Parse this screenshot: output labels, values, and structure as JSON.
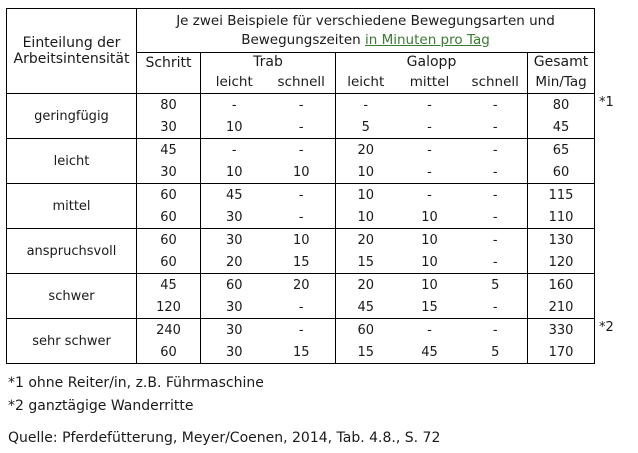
{
  "table": {
    "row_header_label_line1": "Einteilung der",
    "row_header_label_line2": "Arbeitsintensität",
    "title_line1": "Je zwei Beispiele für verschiedene Bewegungsarten und",
    "title_line2_prefix": "Bewegungszeiten ",
    "title_line2_highlight": "in Minuten pro Tag",
    "highlight_color": "#3a7a32",
    "group_headers": {
      "schritt": "Schritt",
      "trab": "Trab",
      "galopp": "Galopp",
      "gesamt": "Gesamt"
    },
    "sub_headers": {
      "trab_leicht": "leicht",
      "trab_schnell": "schnell",
      "galopp_leicht": "leicht",
      "galopp_mittel": "mittel",
      "galopp_schnell": "schnell",
      "gesamt_unit": "Min/Tag"
    },
    "groups": [
      {
        "label": "geringfügig",
        "note": "*1",
        "rows": [
          [
            "80",
            "-",
            "-",
            "-",
            "-",
            "-",
            "80"
          ],
          [
            "30",
            "10",
            "-",
            "5",
            "-",
            "-",
            "45"
          ]
        ]
      },
      {
        "label": "leicht",
        "note": "",
        "rows": [
          [
            "45",
            "-",
            "-",
            "20",
            "-",
            "-",
            "65"
          ],
          [
            "30",
            "10",
            "10",
            "10",
            "-",
            "-",
            "60"
          ]
        ]
      },
      {
        "label": "mittel",
        "note": "",
        "rows": [
          [
            "60",
            "45",
            "-",
            "10",
            "-",
            "-",
            "115"
          ],
          [
            "60",
            "30",
            "-",
            "10",
            "10",
            "-",
            "110"
          ]
        ]
      },
      {
        "label": "anspruchsvoll",
        "note": "",
        "rows": [
          [
            "60",
            "30",
            "10",
            "20",
            "10",
            "-",
            "130"
          ],
          [
            "60",
            "20",
            "15",
            "15",
            "10",
            "-",
            "120"
          ]
        ]
      },
      {
        "label": "schwer",
        "note": "",
        "rows": [
          [
            "45",
            "60",
            "20",
            "20",
            "10",
            "5",
            "160"
          ],
          [
            "120",
            "30",
            "-",
            "45",
            "15",
            "-",
            "210"
          ]
        ]
      },
      {
        "label": "sehr schwer",
        "note": "*2",
        "rows": [
          [
            "240",
            "30",
            "-",
            "60",
            "-",
            "-",
            "330"
          ],
          [
            "60",
            "30",
            "15",
            "15",
            "45",
            "5",
            "170"
          ]
        ]
      }
    ]
  },
  "footnotes": {
    "note1": "*1 ohne Reiter/in, z.B. Führmaschine",
    "note2": "*2 ganztägige Wanderritte",
    "source": "Quelle: Pferdefütterung, Meyer/Coenen, 2014, Tab. 4.8., S. 72"
  }
}
